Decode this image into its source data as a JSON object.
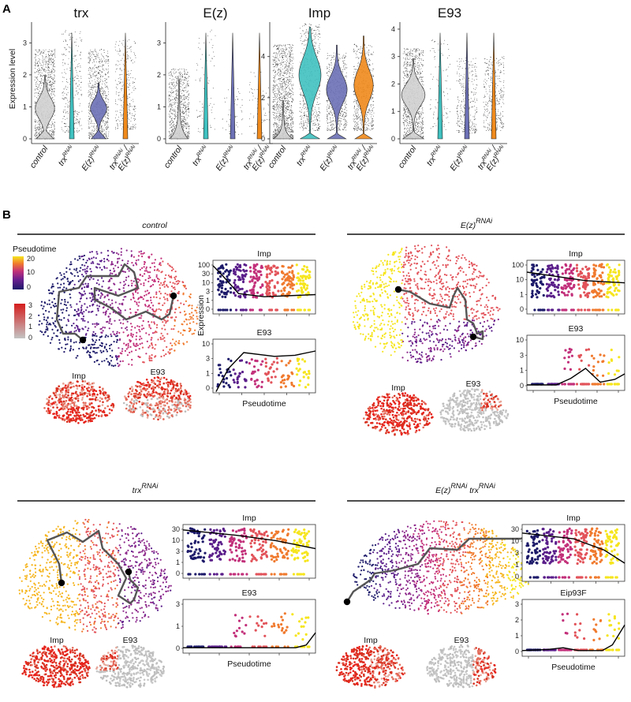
{
  "panel_a": {
    "letter": "A",
    "y_label": "Expression level",
    "charts": [
      {
        "gene": "trx",
        "y_ticks": [
          "0",
          "1",
          "2",
          "3"
        ],
        "ymax": 3.6
      },
      {
        "gene": "E(z)",
        "y_ticks": [
          "0",
          "1",
          "2",
          "3"
        ],
        "ymax": 3.6
      },
      {
        "gene": "Imp",
        "y_ticks": [
          "0",
          "2",
          "4"
        ],
        "ymax": 5.6
      },
      {
        "gene": "E93",
        "y_ticks": [
          "0",
          "1",
          "2",
          "3",
          "4"
        ],
        "ymax": 4.2
      }
    ],
    "groups": [
      {
        "base": "control",
        "sup": ""
      },
      {
        "base": "trx",
        "sup": "RNAi"
      },
      {
        "base": "E(z)",
        "sup": "RNAi"
      },
      {
        "base": "trx",
        "sup": "RNAi",
        "slash": "/",
        "base2": "E(z)",
        "sup2": "RNAi"
      }
    ]
  },
  "panel_b": {
    "letter": "B",
    "legend_pseudotime": {
      "title": "Pseudotime",
      "ticks": [
        "20",
        "10",
        "0"
      ]
    },
    "legend_expression": {
      "ticks": [
        "3",
        "2",
        "1",
        "0"
      ]
    },
    "y_axis_label": "Expression",
    "x_axis_label": "Pseudotime",
    "conditions": [
      {
        "title": "control",
        "sup": "",
        "gene_top": "Imp",
        "gene_bottom": "E93",
        "umap_label_1": "Imp",
        "umap_label_2": "E93",
        "top_ticks": [
          "100",
          "30",
          "10",
          "3",
          "1",
          "0"
        ],
        "bottom_ticks": [
          "10",
          "3",
          "1",
          "0"
        ]
      },
      {
        "title": "E(z)",
        "sup": "RNAi",
        "gene_top": "Imp",
        "gene_bottom": "E93",
        "umap_label_1": "Imp",
        "umap_label_2": "E93",
        "top_ticks": [
          "100",
          "10",
          "1",
          "0"
        ],
        "bottom_ticks": [
          "10",
          "3",
          "1",
          "0"
        ]
      },
      {
        "title": "trx",
        "sup": "RNAi",
        "gene_top": "Imp",
        "gene_bottom": "E93",
        "umap_label_1": "Imp",
        "umap_label_2": "E93",
        "top_ticks": [
          "30",
          "10",
          "3",
          "1",
          "0"
        ],
        "bottom_ticks": [
          "3",
          "1",
          "0"
        ]
      },
      {
        "title": "E(z)",
        "sup": "RNAi",
        "title2": "trx",
        "sup2": "RNAi",
        "gene_top": "Imp",
        "gene_bottom": "Eip93F",
        "umap_label_1": "Imp",
        "umap_label_2": "E93",
        "top_ticks": [
          "30",
          "10",
          "3",
          "1",
          "0"
        ],
        "bottom_ticks": [
          "3",
          "2",
          "1",
          "0"
        ]
      }
    ]
  },
  "colors": {
    "violin_control": "#d0d0d0",
    "violin_trx": "#3fc1c0",
    "violin_ez": "#6c70b5",
    "violin_double": "#f08a1c",
    "umap_grey": "#bdbdbd",
    "expr_red": "#d7301f"
  }
}
